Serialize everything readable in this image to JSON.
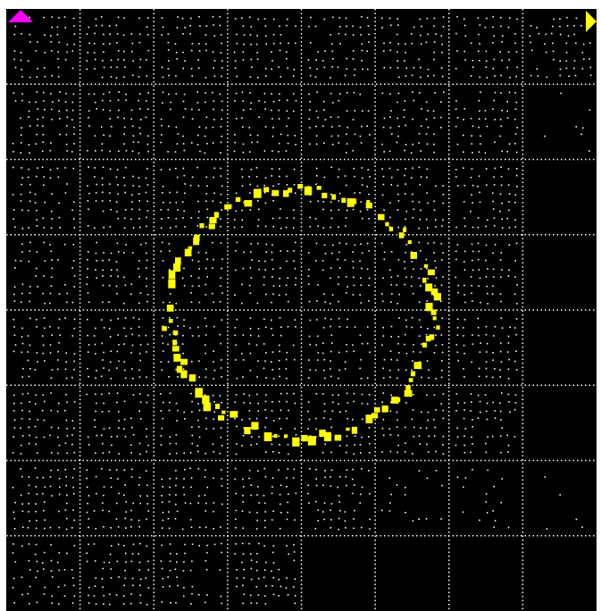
{
  "display": {
    "name": "oscilloscope-xy-display",
    "background": "#000000",
    "grid_color": "#ffffff",
    "divisions": {
      "x": 8,
      "y": 8
    },
    "grid_style": "dotted"
  },
  "markers": {
    "channel1": {
      "shape": "triangle-up",
      "color": "#ff00ff"
    },
    "channel2": {
      "shape": "triangle-right",
      "color": "#ffff00"
    }
  },
  "trace": {
    "shape": "ring",
    "color": "#ffff00",
    "center_div": [
      4.0,
      4.05
    ],
    "radius_div": {
      "x": 1.8,
      "y": 1.65
    },
    "style": "scattered points"
  }
}
